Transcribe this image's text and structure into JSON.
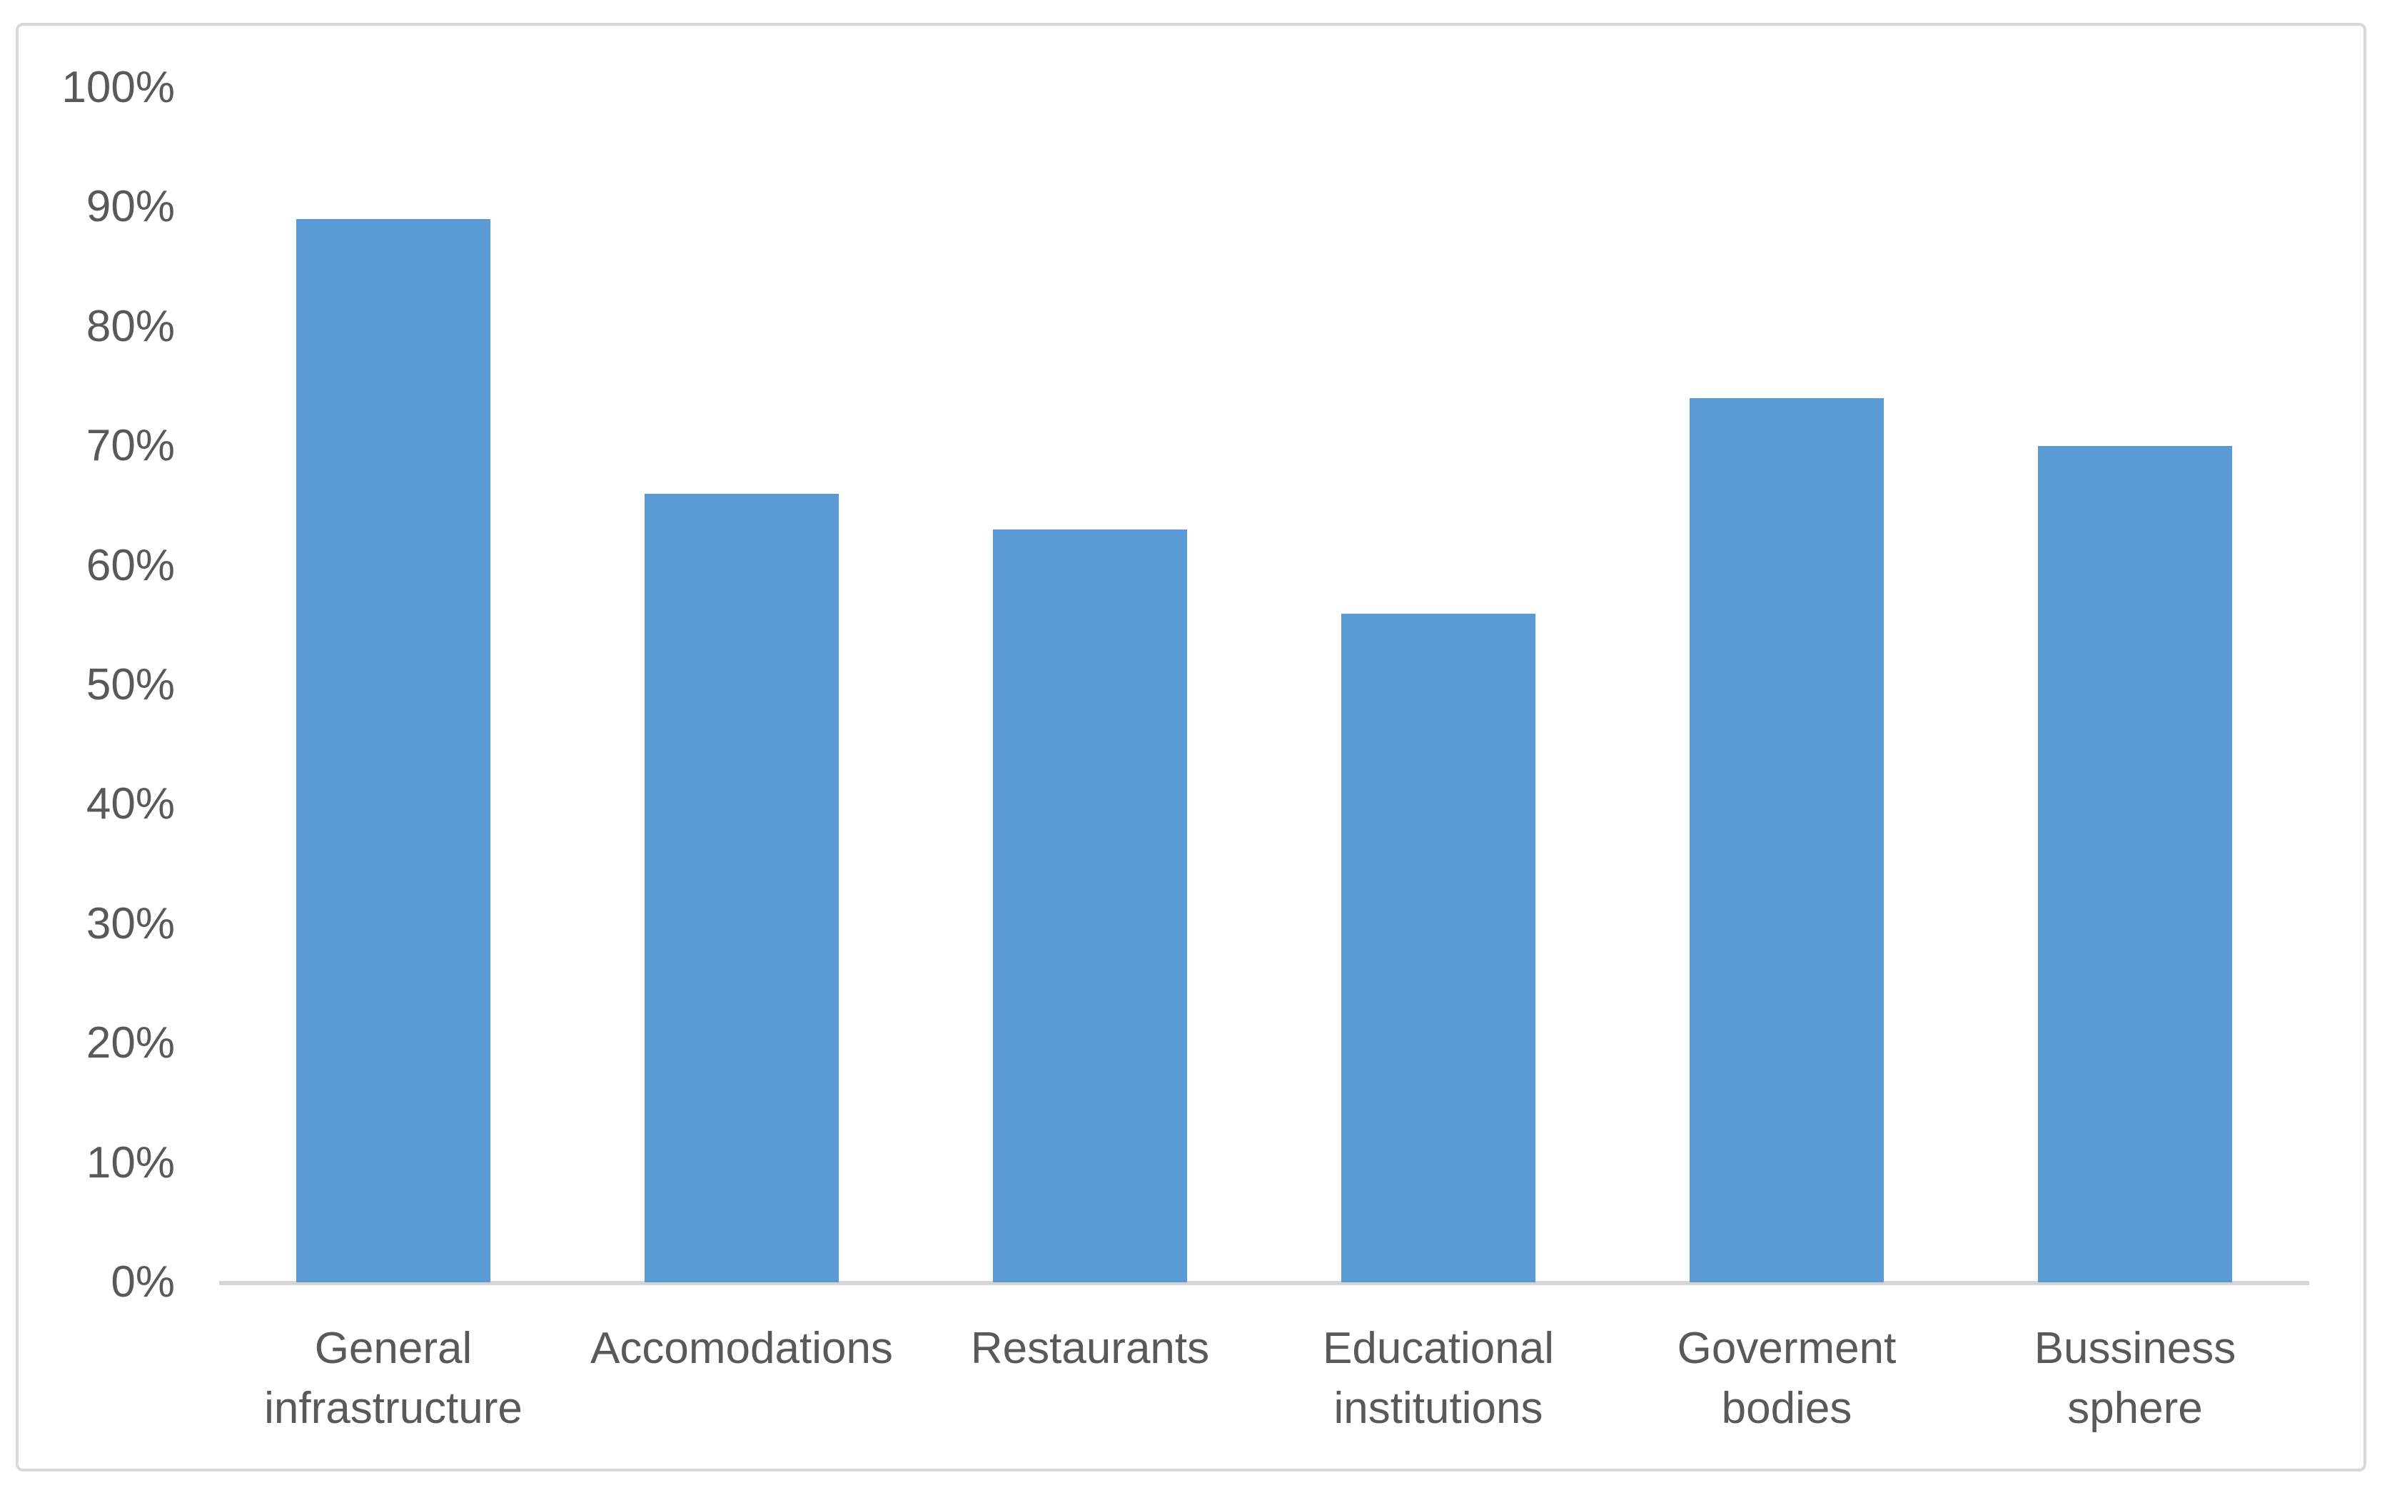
{
  "chart_data": {
    "type": "bar",
    "categories": [
      "General infrastructure",
      "Accomodations",
      "Restaurants",
      "Educational institutions",
      "Goverment bodies",
      "Bussiness sphere"
    ],
    "categories_display": [
      "General\ninfrastructure",
      "Accomodations",
      "Restaurants",
      "Educational\ninstitutions",
      "Goverment\nbodies",
      "Bussiness\nsphere"
    ],
    "values": [
      89,
      66,
      63,
      56,
      74,
      70
    ],
    "unit": "%",
    "xlabel": "",
    "ylabel": "",
    "ylim": [
      0,
      100
    ],
    "y_tick_step": 10,
    "y_ticks": [
      "100%",
      "90%",
      "80%",
      "70%",
      "60%",
      "50%",
      "40%",
      "30%",
      "20%",
      "10%",
      "0%"
    ],
    "grid": false,
    "legend": false,
    "colors": {
      "bar": "#5B9BD5",
      "axis_line": "#D6D6D6",
      "labels": "#595959",
      "frame_border": "#D9D9D9",
      "background": "#FFFFFF"
    }
  }
}
